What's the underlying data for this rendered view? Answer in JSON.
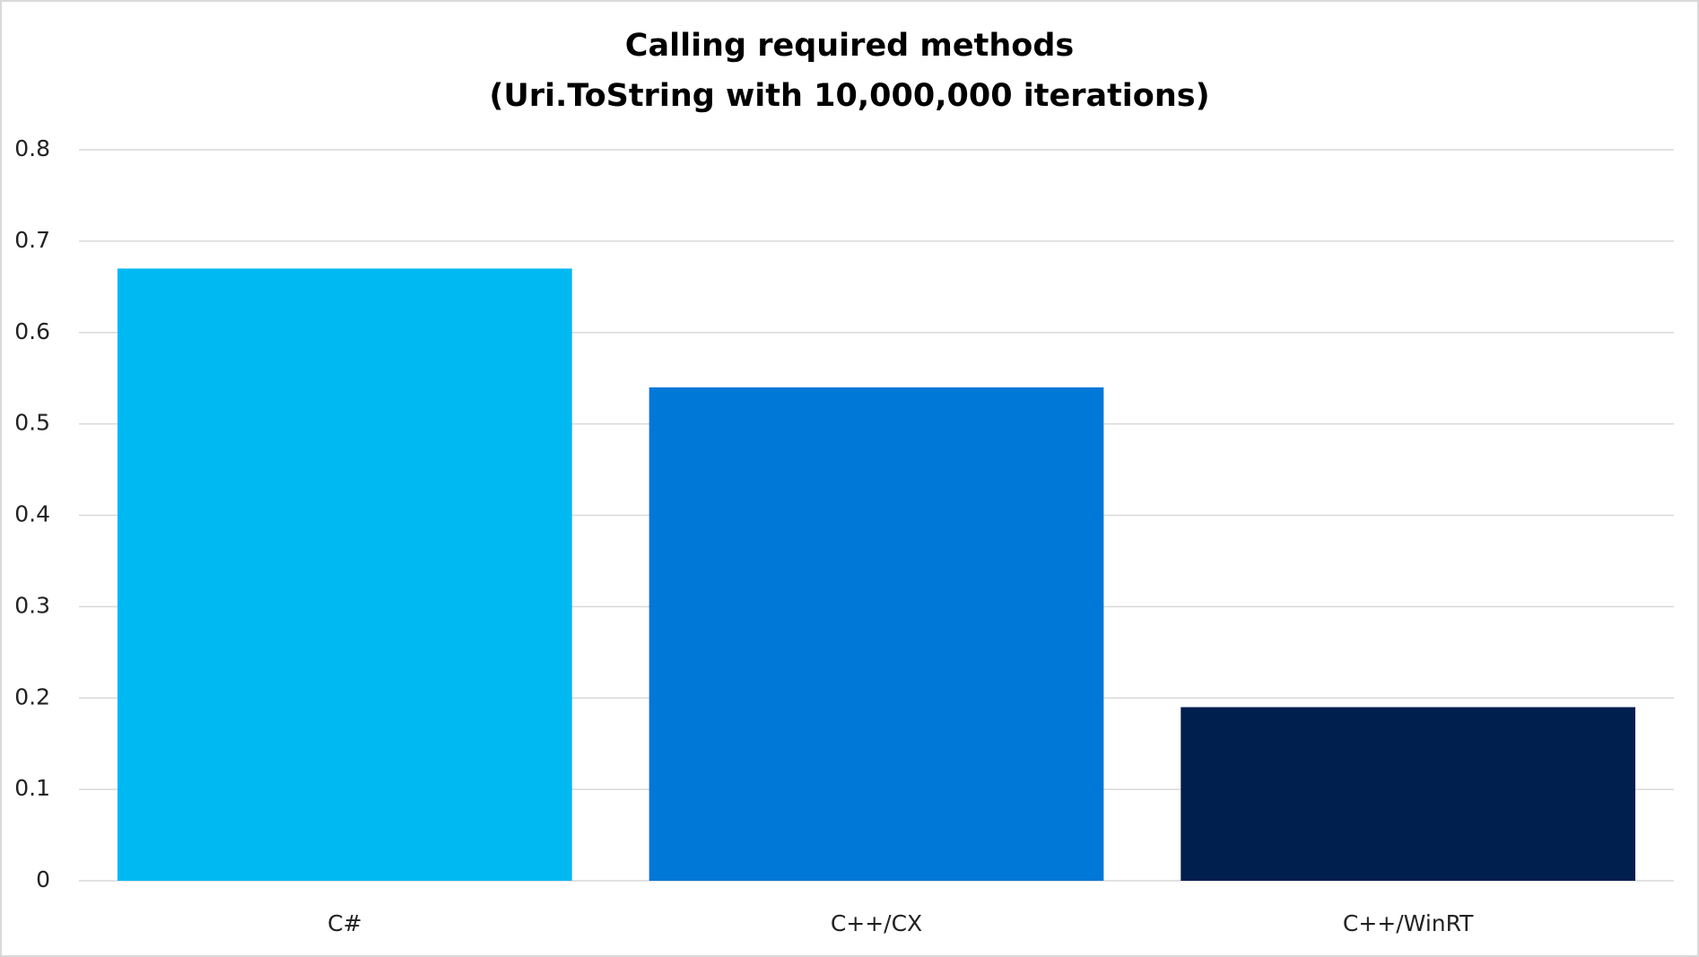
{
  "chart_data": {
    "type": "bar",
    "title": "Calling required methods",
    "subtitle": "(Uri.ToString with 10,000,000 iterations)",
    "categories": [
      "C#",
      "C++/CX",
      "C++/WinRT"
    ],
    "values": [
      0.67,
      0.54,
      0.19
    ],
    "colors": [
      "#00b9f2",
      "#0078d7",
      "#001e4e"
    ],
    "ylim": [
      0,
      0.8
    ],
    "yticks": [
      0,
      0.1,
      0.2,
      0.3,
      0.4,
      0.5,
      0.6,
      0.7,
      0.8
    ],
    "grid": true
  }
}
